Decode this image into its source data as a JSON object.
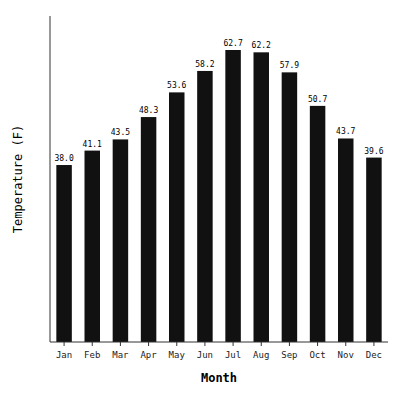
{
  "chart_data": {
    "type": "bar",
    "categories": [
      "Jan",
      "Feb",
      "Mar",
      "Apr",
      "May",
      "Jun",
      "Jul",
      "Aug",
      "Sep",
      "Oct",
      "Nov",
      "Dec"
    ],
    "values": [
      38.0,
      41.1,
      43.5,
      48.3,
      53.6,
      58.2,
      62.7,
      62.2,
      57.9,
      50.7,
      43.7,
      39.6
    ],
    "value_labels": [
      "38.0",
      "41.1",
      "43.5",
      "48.3",
      "53.6",
      "58.2",
      "62.7",
      "62.2",
      "57.9",
      "50.7",
      "43.7",
      "39.6"
    ],
    "color": "#111111",
    "xlabel": "Month",
    "ylabel": "Temperature (F)",
    "ylim": [
      0,
      70
    ],
    "yticks": [],
    "data_labels": true,
    "tick_labels": "x"
  }
}
